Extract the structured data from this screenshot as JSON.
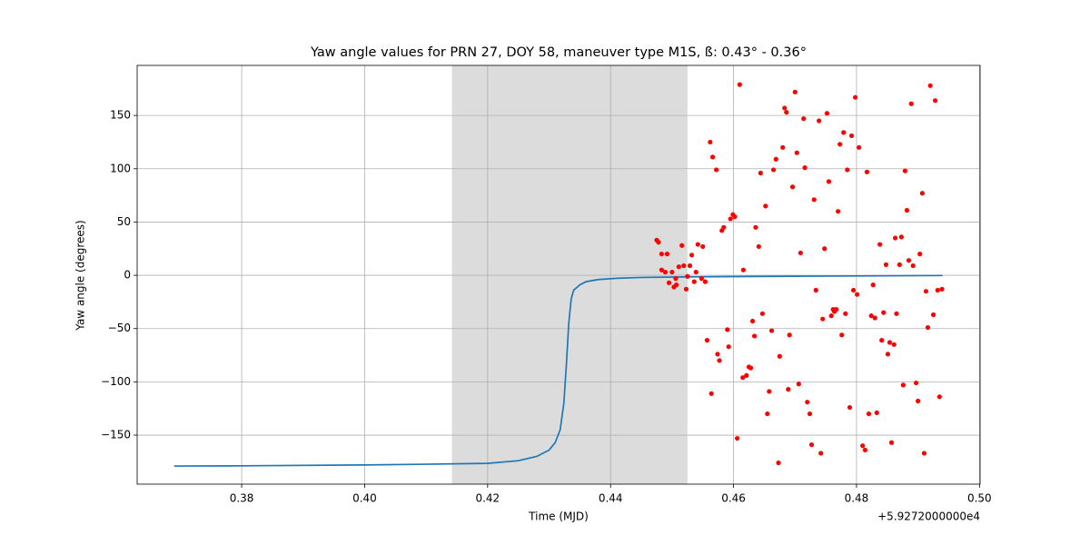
{
  "chart_data": {
    "type": "line",
    "title": "Yaw angle values for PRN 27, DOY 58, maneuver type M1S, ß: 0.43° - 0.36°",
    "x_label": "Time (MJD)",
    "y_label": "Yaw angle (degrees)",
    "x_offset_label": "+5.9272000000e4",
    "xlim": [
      0.363,
      0.5001
    ],
    "ylim": [
      -196,
      197
    ],
    "xticks": [
      0.38,
      {
        "value": 0.4,
        "label": "0.40"
      },
      0.42,
      0.44,
      0.46,
      0.48,
      {
        "value": 0.5,
        "label": "0.50"
      }
    ],
    "yticks": [
      {
        "value": -150,
        "label": "−150"
      },
      {
        "value": -100,
        "label": "−100"
      },
      {
        "value": -50,
        "label": "−50"
      },
      0,
      50,
      100,
      150
    ],
    "grid": true,
    "shade": [
      0.4142,
      0.4525
    ],
    "shade_color": "#dcdcdc",
    "line": {
      "color": "#1f77b4",
      "x": [
        0.369,
        0.38,
        0.4,
        0.41,
        0.42,
        0.425,
        0.428,
        0.43,
        0.431,
        0.4318,
        0.4324,
        0.4328,
        0.4332,
        0.4336,
        0.434,
        0.435,
        0.436,
        0.438,
        0.441,
        0.445,
        0.452,
        0.46,
        0.47,
        0.48,
        0.494
      ],
      "values": [
        -179,
        -178.8,
        -178,
        -177.3,
        -176.5,
        -174,
        -170,
        -164,
        -157,
        -145,
        -120,
        -85,
        -45,
        -22,
        -14,
        -9,
        -6,
        -4,
        -2.8,
        -2,
        -1.5,
        -1.2,
        -0.9,
        -0.6,
        -0.2
      ]
    },
    "points": {
      "color": "#ff0000",
      "x": [
        0.4475,
        0.4478,
        0.4483,
        0.4492,
        0.4483,
        0.4489,
        0.45,
        0.4495,
        0.4503,
        0.4507,
        0.4506,
        0.4511,
        0.4516,
        0.4519,
        0.4525,
        0.4523,
        0.4529,
        0.4532,
        0.4536,
        0.4539,
        0.4542,
        0.455,
        0.4548,
        0.4554,
        0.4562,
        0.4566,
        0.4572,
        0.4557,
        0.4564,
        0.4574,
        0.4577,
        0.4581,
        0.4584,
        0.459,
        0.4592,
        0.4595,
        0.4599,
        0.4602,
        0.4606,
        0.461,
        0.4615,
        0.4616,
        0.4621,
        0.4625,
        0.4628,
        0.4631,
        0.4634,
        0.4636,
        0.4641,
        0.4644,
        0.4647,
        0.4652,
        0.4655,
        0.4658,
        0.4662,
        0.4665,
        0.4669,
        0.4673,
        0.4675,
        0.468,
        0.4683,
        0.4686,
        0.4689,
        0.4691,
        0.4696,
        0.47,
        0.4703,
        0.4706,
        0.4709,
        0.4714,
        0.4716,
        0.472,
        0.4724,
        0.4727,
        0.4731,
        0.4734,
        0.4739,
        0.4742,
        0.4745,
        0.4748,
        0.4752,
        0.4755,
        0.4759,
        0.4762,
        0.4764,
        0.4767,
        0.477,
        0.4773,
        0.4776,
        0.4779,
        0.4782,
        0.4785,
        0.4789,
        0.4792,
        0.4795,
        0.4798,
        0.4801,
        0.4804,
        0.481,
        0.4814,
        0.4817,
        0.482,
        0.4824,
        0.4827,
        0.483,
        0.4833,
        0.4838,
        0.4841,
        0.4844,
        0.4848,
        0.4851,
        0.4854,
        0.4857,
        0.4861,
        0.4863,
        0.4865,
        0.487,
        0.4873,
        0.4876,
        0.4879,
        0.4882,
        0.4885,
        0.4889,
        0.4892,
        0.4897,
        0.49,
        0.4903,
        0.4907,
        0.491,
        0.4913,
        0.4916,
        0.492,
        0.4925,
        0.4928,
        0.4932,
        0.4935,
        0.4939
      ],
      "values": [
        33,
        31,
        20,
        20,
        5,
        3,
        3,
        -7,
        -11,
        -9,
        -3,
        8,
        28,
        9,
        -1,
        -13,
        9,
        19,
        -6,
        3,
        29,
        27,
        -3,
        -6,
        125,
        111,
        99,
        -61,
        -111,
        -74,
        -80,
        42,
        45,
        -51,
        -67,
        53,
        57,
        55,
        -153,
        179,
        -96,
        5,
        -94,
        -86,
        -87,
        -43,
        -57,
        45,
        27,
        96,
        -36,
        65,
        -130,
        -109,
        -52,
        99,
        109,
        -176,
        -76,
        120,
        157,
        153,
        -107,
        -56,
        83,
        172,
        115,
        -102,
        21,
        147,
        101,
        -119,
        -130,
        -159,
        71,
        -14,
        145,
        -167,
        -41,
        25,
        152,
        88,
        -38,
        -32,
        -34,
        -32,
        60,
        123,
        -56,
        134,
        -36,
        99,
        -124,
        131,
        -14,
        167,
        -18,
        120,
        -160,
        -164,
        97,
        -130,
        -38,
        -9,
        -40,
        -129,
        29,
        -61,
        -35,
        10,
        -74,
        -63,
        -157,
        -65,
        35,
        -36,
        10,
        36,
        -103,
        98,
        61,
        14,
        161,
        9,
        -101,
        -118,
        20,
        77,
        -167,
        -15,
        -49,
        178,
        -37,
        164,
        -14,
        -114,
        -13
      ]
    }
  }
}
